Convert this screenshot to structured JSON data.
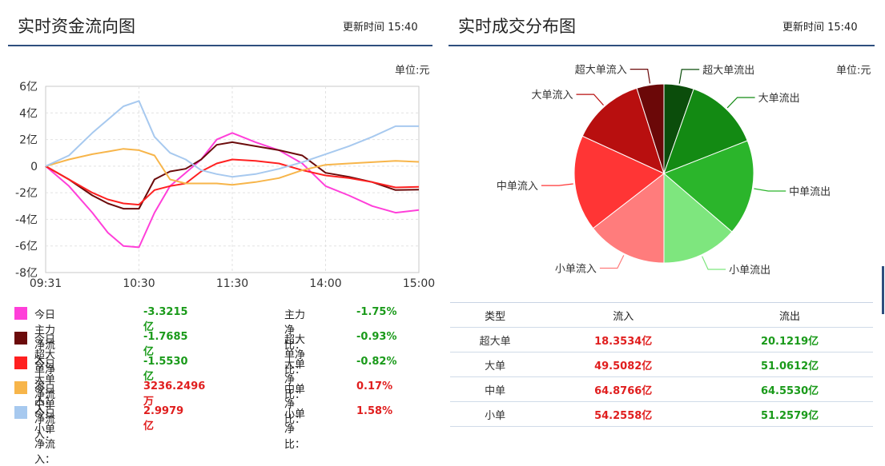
{
  "left": {
    "title": "实时资金流向图",
    "update_time": "更新时间 15:40",
    "unit": "单位:元",
    "legend": [
      {
        "label": "今日主力净流入：",
        "value": "-3.3215亿",
        "ratio_label": "主力净比：",
        "ratio": "-1.75%",
        "color": "#ff3fd9",
        "value_color": "#1a9a1a",
        "ratio_color": "#1a9a1a"
      },
      {
        "label": "今日超大单净流入：",
        "value": "-1.7685亿",
        "ratio_label": "超大单净比：",
        "ratio": "-0.93%",
        "color": "#6b0b0b",
        "value_color": "#1a9a1a",
        "ratio_color": "#1a9a1a"
      },
      {
        "label": "今日大单净流入：",
        "value": "-1.5530亿",
        "ratio_label": "大单净比：",
        "ratio": "-0.82%",
        "color": "#ff2020",
        "value_color": "#1a9a1a",
        "ratio_color": "#1a9a1a"
      },
      {
        "label": "今日中单净流入：",
        "value": "3236.2496万",
        "ratio_label": "中单净比：",
        "ratio": "0.17%",
        "color": "#f7b54a",
        "value_color": "#e01e1e",
        "ratio_color": "#e01e1e"
      },
      {
        "label": "今日小单净流入：",
        "value": "2.9979亿",
        "ratio_label": "小单净比：",
        "ratio": "1.58%",
        "color": "#a7c9ef",
        "value_color": "#e01e1e",
        "ratio_color": "#e01e1e"
      }
    ]
  },
  "right": {
    "title": "实时成交分布图",
    "update_time": "更新时间 15:40",
    "unit": "单位:元",
    "table": {
      "headers": [
        "类型",
        "流入",
        "流出"
      ],
      "rows": [
        {
          "type": "超大单",
          "in": "18.3534亿",
          "out": "20.1219亿"
        },
        {
          "type": "大单",
          "in": "49.5082亿",
          "out": "51.0612亿"
        },
        {
          "type": "中单",
          "in": "64.8766亿",
          "out": "64.5530亿"
        },
        {
          "type": "小单",
          "in": "54.2558亿",
          "out": "51.2579亿"
        }
      ]
    }
  },
  "chart_data": [
    {
      "type": "line",
      "title": "实时资金流向图",
      "xlabel": "",
      "ylabel": "",
      "x_ticks": [
        "09:31",
        "10:30",
        "11:30",
        "14:00",
        "15:00"
      ],
      "y_ticks": [
        "6亿",
        "4亿",
        "2亿",
        "0",
        "-2亿",
        "-4亿",
        "-6亿",
        "-8亿"
      ],
      "ylim": [
        -8,
        6
      ],
      "grid": true,
      "x": [
        0,
        15,
        30,
        40,
        50,
        60,
        70,
        80,
        90,
        100,
        110,
        120,
        135,
        150,
        165,
        180,
        195,
        210,
        225,
        240
      ],
      "series": [
        {
          "color": "#ff3fd9",
          "values": [
            0,
            -1.5,
            -3.5,
            -5,
            -6,
            -6.1,
            -3.5,
            -1.5,
            -0.5,
            0.5,
            2,
            2.5,
            1.8,
            1.2,
            0.2,
            -1.5,
            -2.2,
            -3.0,
            -3.5,
            -3.3
          ]
        },
        {
          "color": "#6b0b0b",
          "values": [
            0,
            -1.0,
            -2.2,
            -2.8,
            -3.2,
            -3.2,
            -1.0,
            -0.4,
            -0.2,
            0.5,
            1.6,
            1.8,
            1.5,
            1.2,
            0.8,
            -0.5,
            -0.8,
            -1.2,
            -1.8,
            -1.77
          ]
        },
        {
          "color": "#ff2020",
          "values": [
            0,
            -1.0,
            -2.0,
            -2.5,
            -2.8,
            -2.9,
            -1.8,
            -1.5,
            -1.3,
            -0.4,
            0.2,
            0.5,
            0.4,
            0.2,
            -0.3,
            -0.7,
            -0.9,
            -1.2,
            -1.6,
            -1.55
          ]
        },
        {
          "color": "#f7b54a",
          "values": [
            0,
            0.5,
            0.9,
            1.1,
            1.3,
            1.2,
            0.8,
            -1.0,
            -1.3,
            -1.3,
            -1.3,
            -1.4,
            -1.2,
            -0.9,
            -0.3,
            0.1,
            0.2,
            0.3,
            0.4,
            0.32
          ]
        },
        {
          "color": "#a7c9ef",
          "values": [
            0,
            0.8,
            2.5,
            3.5,
            4.5,
            4.9,
            2.2,
            1.0,
            0.5,
            -0.3,
            -0.6,
            -0.8,
            -0.6,
            -0.2,
            0.3,
            0.9,
            1.5,
            2.2,
            3.0,
            3.0
          ]
        }
      ]
    },
    {
      "type": "pie",
      "title": "实时成交分布图",
      "slices": [
        {
          "label": "超大单流出",
          "value": 20.1219,
          "color": "#0b4d0b"
        },
        {
          "label": "大单流出",
          "value": 51.0612,
          "color": "#138a13"
        },
        {
          "label": "中单流出",
          "value": 64.553,
          "color": "#2bb52b"
        },
        {
          "label": "小单流出",
          "value": 51.2579,
          "color": "#7ee67e"
        },
        {
          "label": "小单流入",
          "value": 54.2558,
          "color": "#ff7c7c"
        },
        {
          "label": "中单流入",
          "value": 64.8766,
          "color": "#ff3535"
        },
        {
          "label": "大单流入",
          "value": 49.5082,
          "color": "#b80f0f"
        },
        {
          "label": "超大单流入",
          "value": 18.3534,
          "color": "#6b0808"
        }
      ]
    }
  ]
}
